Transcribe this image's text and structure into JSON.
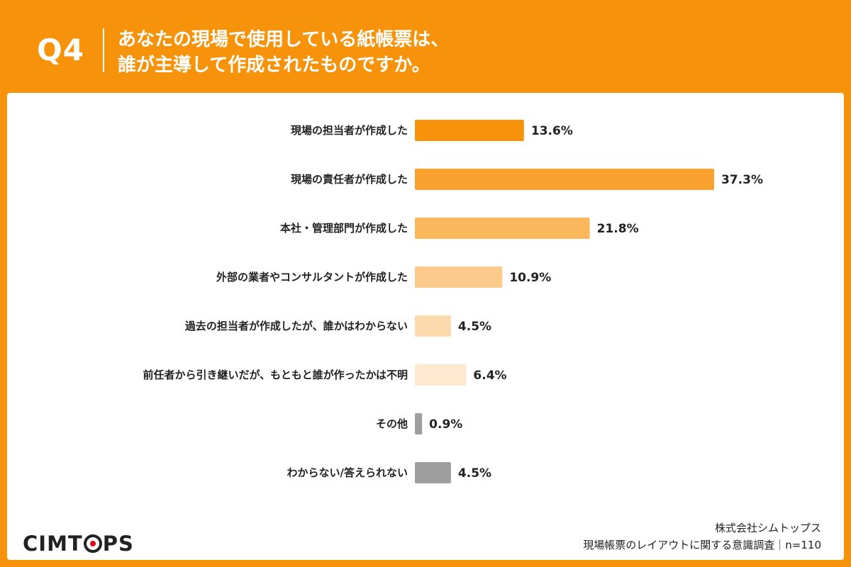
{
  "header": {
    "question_number": "Q4",
    "question_line1": "あなたの現場で使用している紙帳票は、",
    "question_line2": "誰が主導して作成されたものですか。"
  },
  "chart_data": {
    "type": "bar",
    "orientation": "horizontal",
    "categories": [
      "現場の担当者が作成した",
      "現場の責任者が作成した",
      "本社・管理部門が作成した",
      "外部の業者やコンサルタントが作成した",
      "過去の担当者が作成したが、誰かはわからない",
      "前任者から引き継いだが、もともと誰が作ったかは不明",
      "その他",
      "わからない/答えられない"
    ],
    "values": [
      13.6,
      37.3,
      21.8,
      10.9,
      4.5,
      6.4,
      0.9,
      4.5
    ],
    "value_labels": [
      "13.6%",
      "37.3%",
      "21.8%",
      "10.9%",
      "4.5%",
      "6.4%",
      "0.9%",
      "4.5%"
    ],
    "unit": "%",
    "xlim": [
      0,
      37.3
    ],
    "grid": false,
    "colors": [
      "#F7930A",
      "#F9A12E",
      "#FBB75C",
      "#FCCB8B",
      "#FDDAAE",
      "#FEE8CF",
      "#9E9E9E",
      "#9E9E9E"
    ]
  },
  "footer": {
    "logo_text": "CIMTOPS",
    "company": "株式会社シムトップス",
    "survey": "現場帳票のレイアウトに関する意識調査｜n=110"
  },
  "theme": {
    "accent": "#F7930A",
    "logo_dot": "#E60012"
  }
}
